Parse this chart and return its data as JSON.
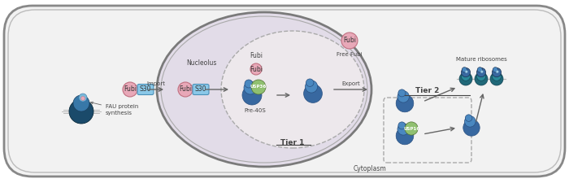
{
  "bg_color": "#ffffff",
  "cell_fill": "#f0f0f0",
  "cell_edge": "#888888",
  "nucleus_fill": "#e0dce8",
  "nucleus_edge": "#777777",
  "tier1_fill": "#ede8ec",
  "tier1_edge": "#aaaaaa",
  "tier2_edge": "#aaaaaa",
  "fubi_fill": "#e8a8b8",
  "fubi_edge": "#c07080",
  "s30_fill": "#8ac8e8",
  "s30_edge": "#4a90b8",
  "usp36_fill": "#90c070",
  "usp36_edge": "#507030",
  "usp16_fill": "#90c070",
  "usp16_edge": "#507030",
  "blue1": "#3868a0",
  "blue2": "#4a88c0",
  "blue3": "#2a5080",
  "teal1": "#206878",
  "teal2": "#2a8898",
  "arrow_color": "#666666",
  "text_color": "#444444",
  "label_cytoplasm": "Cytoplasm",
  "label_nucleolus": "Nucleolus",
  "label_tier1": "Tier 1",
  "label_tier2": "Tier 2",
  "label_fau": "FAU protein\nsynthesis",
  "label_fubi": "Fubi",
  "label_s30": "S30",
  "label_usp36": "USP36",
  "label_usp16": "USP16",
  "label_pre40s": "Pre-40S",
  "label_free_fubi": "Free Fubi",
  "label_import": "Import",
  "label_export": "Export",
  "label_mature": "Mature ribosomes"
}
